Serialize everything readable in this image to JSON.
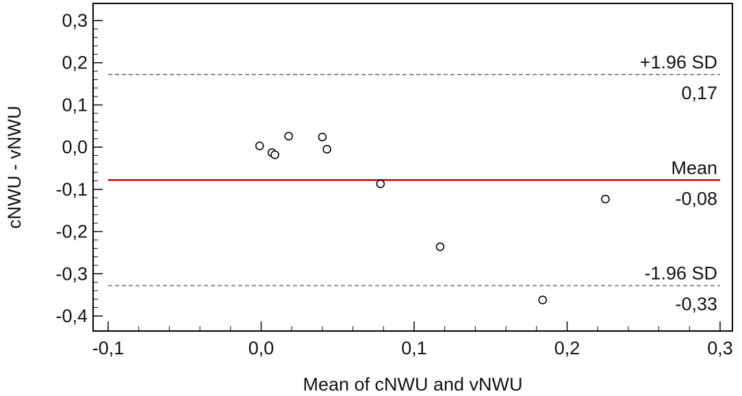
{
  "chart_data": {
    "type": "scatter",
    "title": "",
    "xlabel": "Mean of cNWU and vNWU",
    "ylabel": "cNWU - vNWU",
    "xlim": [
      -0.1,
      0.3
    ],
    "ylim": [
      -0.4,
      0.3
    ],
    "x_ticks": [
      -0.1,
      0.0,
      0.1,
      0.2,
      0.3
    ],
    "x_tick_labels": [
      "-0,1",
      "0,0",
      "0,1",
      "0,2",
      "0,3"
    ],
    "y_ticks": [
      0.3,
      0.2,
      0.1,
      0.0,
      -0.1,
      -0.2,
      -0.3,
      -0.4
    ],
    "y_tick_labels": [
      "0,3",
      "0,2",
      "0,1",
      "0,0",
      "-0,1",
      "-0,2",
      "-0,3",
      "-0,4"
    ],
    "grid": false,
    "points": [
      {
        "x": -0.001,
        "y": 0.003
      },
      {
        "x": 0.007,
        "y": -0.013
      },
      {
        "x": 0.009,
        "y": -0.018
      },
      {
        "x": 0.018,
        "y": 0.026
      },
      {
        "x": 0.04,
        "y": 0.024
      },
      {
        "x": 0.043,
        "y": -0.005
      },
      {
        "x": 0.078,
        "y": -0.087
      },
      {
        "x": 0.117,
        "y": -0.236
      },
      {
        "x": 0.184,
        "y": -0.362
      },
      {
        "x": 0.225,
        "y": -0.123
      }
    ],
    "reference_lines": [
      {
        "name": "+1.96 SD",
        "value": 0.172,
        "value_label": "0,17",
        "style": "dashed",
        "color": "#8c8c8c"
      },
      {
        "name": "Mean",
        "value": -0.078,
        "value_label": "-0,08",
        "style": "solid",
        "color": "#c00000"
      },
      {
        "name": "-1.96 SD",
        "value": -0.328,
        "value_label": "-0,33",
        "style": "dashed",
        "color": "#8c8c8c"
      }
    ]
  }
}
